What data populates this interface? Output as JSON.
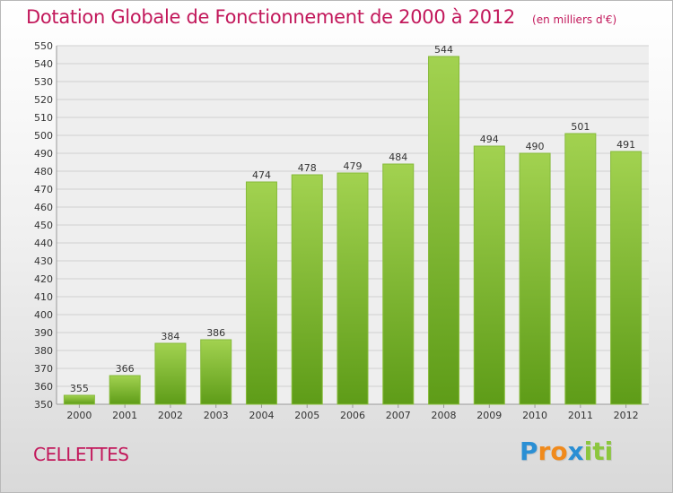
{
  "header": {
    "title": "Dotation Globale de Fonctionnement de 2000 à 2012",
    "subtitle": "(en milliers d'€)"
  },
  "commune": "CELLETTES",
  "logo": {
    "letters": [
      "P",
      "r",
      "o",
      "x",
      "i",
      "t",
      "i"
    ],
    "colors": [
      "#2a8fd4",
      "#f08a1c",
      "#f08a1c",
      "#2a8fd4",
      "#8cc63e",
      "#8cc63e",
      "#8cc63e"
    ]
  },
  "chart_data": {
    "type": "bar",
    "title": "Dotation Globale de Fonctionnement de 2000 à 2012",
    "subtitle": "(en milliers d'€)",
    "categories": [
      "2000",
      "2001",
      "2002",
      "2003",
      "2004",
      "2005",
      "2006",
      "2007",
      "2008",
      "2009",
      "2010",
      "2011",
      "2012"
    ],
    "values": [
      355,
      366,
      384,
      386,
      474,
      478,
      479,
      484,
      544,
      494,
      490,
      501,
      491
    ],
    "ylim": [
      350,
      550
    ],
    "ytick_step": 10,
    "grid": true,
    "bar_color_top": "#a2d250",
    "bar_color_bottom": "#5e9c18",
    "label_color": "#333333"
  }
}
